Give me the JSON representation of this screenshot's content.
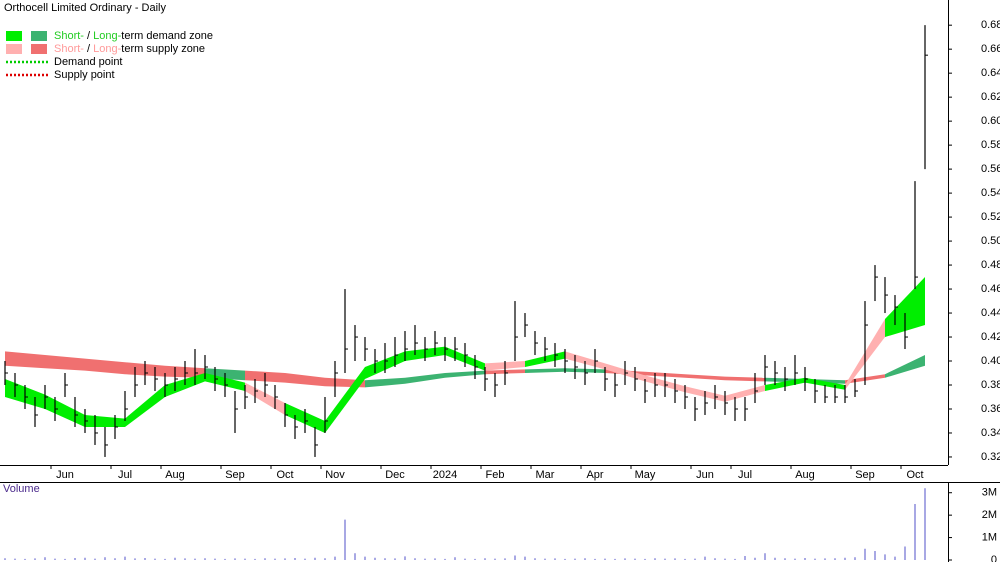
{
  "chart_data": {
    "type": "hlc",
    "title": "Orthocell Limited Ordinary - Daily",
    "legend": [
      {
        "parts": [
          "Short-",
          " / ",
          "Long-",
          "term demand zone"
        ],
        "colors": [
          "#00ee00",
          "#3cb371"
        ],
        "text_color": "#22cc22"
      },
      {
        "parts": [
          "Short-",
          " / ",
          "Long-",
          "term supply zone"
        ],
        "colors": [
          "#ffb0b0",
          "#f07070"
        ],
        "text_color": "#ff9a9a"
      },
      {
        "parts": [
          "Demand point"
        ],
        "colors": [
          "#00cc00"
        ],
        "dotted": true
      },
      {
        "parts": [
          "Supply point"
        ],
        "colors": [
          "#dd0000"
        ],
        "dotted": true
      }
    ],
    "categories": [
      null,
      null,
      null,
      null,
      null,
      null,
      "Jun",
      null,
      null,
      null,
      null,
      null,
      "Jul",
      null,
      null,
      null,
      null,
      "Aug",
      null,
      null,
      null,
      null,
      null,
      "Sep",
      null,
      null,
      null,
      null,
      "Oct",
      null,
      null,
      null,
      null,
      "Nov",
      null,
      null,
      null,
      null,
      null,
      "Dec",
      null,
      null,
      null,
      null,
      "2024",
      null,
      null,
      null,
      null,
      "Feb",
      null,
      null,
      null,
      null,
      "Mar",
      null,
      null,
      null,
      null,
      "Apr",
      null,
      null,
      null,
      null,
      "May",
      null,
      null,
      null,
      null,
      null,
      "Jun",
      null,
      null,
      null,
      "Jul",
      null,
      null,
      null,
      null,
      null,
      "Aug",
      null,
      null,
      null,
      null,
      null,
      "Sep",
      null,
      null,
      null,
      null,
      "Oct",
      null
    ],
    "high": [
      0.4,
      0.39,
      0.38,
      0.37,
      0.38,
      0.37,
      0.39,
      0.37,
      0.36,
      0.355,
      0.345,
      0.355,
      0.375,
      0.395,
      0.4,
      0.395,
      0.39,
      0.395,
      0.4,
      0.41,
      0.405,
      0.395,
      0.39,
      0.375,
      0.38,
      0.385,
      0.39,
      0.38,
      0.365,
      0.355,
      0.36,
      0.345,
      0.37,
      0.4,
      0.46,
      0.43,
      0.42,
      0.41,
      0.415,
      0.42,
      0.425,
      0.43,
      0.42,
      0.425,
      0.42,
      0.42,
      0.415,
      0.405,
      0.395,
      0.39,
      0.4,
      0.45,
      0.44,
      0.425,
      0.42,
      0.415,
      0.41,
      0.405,
      0.4,
      0.41,
      0.395,
      0.39,
      0.4,
      0.395,
      0.385,
      0.39,
      0.39,
      0.385,
      0.38,
      0.37,
      0.375,
      0.38,
      0.375,
      0.37,
      0.37,
      0.39,
      0.405,
      0.4,
      0.395,
      0.405,
      0.395,
      0.385,
      0.38,
      0.38,
      0.38,
      0.385,
      0.45,
      0.48,
      0.47,
      0.455,
      0.44,
      0.55,
      0.68
    ],
    "low": [
      0.38,
      0.37,
      0.36,
      0.345,
      0.36,
      0.35,
      0.37,
      0.345,
      0.34,
      0.33,
      0.32,
      0.335,
      0.35,
      0.37,
      0.38,
      0.375,
      0.37,
      0.375,
      0.38,
      0.38,
      0.385,
      0.375,
      0.37,
      0.34,
      0.36,
      0.365,
      0.37,
      0.36,
      0.345,
      0.335,
      0.34,
      0.32,
      0.34,
      0.37,
      0.39,
      0.4,
      0.4,
      0.39,
      0.39,
      0.395,
      0.4,
      0.405,
      0.4,
      0.405,
      0.4,
      0.4,
      0.395,
      0.385,
      0.375,
      0.37,
      0.38,
      0.4,
      0.42,
      0.405,
      0.4,
      0.395,
      0.39,
      0.385,
      0.38,
      0.39,
      0.375,
      0.37,
      0.38,
      0.375,
      0.365,
      0.37,
      0.37,
      0.365,
      0.36,
      0.35,
      0.355,
      0.36,
      0.355,
      0.35,
      0.35,
      0.365,
      0.38,
      0.38,
      0.375,
      0.38,
      0.375,
      0.365,
      0.365,
      0.365,
      0.365,
      0.37,
      0.38,
      0.45,
      0.44,
      0.43,
      0.41,
      0.46,
      0.56
    ],
    "close": [
      0.39,
      0.38,
      0.37,
      0.355,
      0.37,
      0.36,
      0.38,
      0.355,
      0.35,
      0.34,
      0.33,
      0.345,
      0.36,
      0.38,
      0.39,
      0.385,
      0.38,
      0.385,
      0.39,
      0.39,
      0.395,
      0.385,
      0.38,
      0.36,
      0.37,
      0.375,
      0.38,
      0.37,
      0.355,
      0.345,
      0.35,
      0.33,
      0.35,
      0.39,
      0.41,
      0.42,
      0.41,
      0.4,
      0.4,
      0.405,
      0.41,
      0.415,
      0.41,
      0.415,
      0.41,
      0.41,
      0.405,
      0.395,
      0.385,
      0.38,
      0.39,
      0.42,
      0.43,
      0.415,
      0.41,
      0.405,
      0.4,
      0.395,
      0.39,
      0.4,
      0.385,
      0.38,
      0.39,
      0.385,
      0.375,
      0.38,
      0.38,
      0.375,
      0.37,
      0.36,
      0.365,
      0.37,
      0.365,
      0.36,
      0.36,
      0.375,
      0.395,
      0.39,
      0.385,
      0.39,
      0.385,
      0.375,
      0.37,
      0.37,
      0.37,
      0.375,
      0.43,
      0.47,
      0.455,
      0.445,
      0.42,
      0.47,
      0.655
    ],
    "bar_color": "#000000",
    "long_term_zone": {
      "index": [
        0,
        4,
        8,
        12,
        16,
        20,
        24,
        28,
        32,
        36,
        40,
        44,
        48,
        52,
        56,
        60,
        64,
        68,
        72,
        76,
        80,
        84,
        88,
        92
      ],
      "lower": [
        0.396,
        0.394,
        0.392,
        0.389,
        0.387,
        0.386,
        0.384,
        0.382,
        0.379,
        0.378,
        0.381,
        0.386,
        0.389,
        0.39,
        0.391,
        0.39,
        0.388,
        0.386,
        0.384,
        0.383,
        0.382,
        0.381,
        0.386,
        0.396
      ],
      "upper": [
        0.408,
        0.405,
        0.402,
        0.399,
        0.396,
        0.394,
        0.392,
        0.39,
        0.386,
        0.384,
        0.386,
        0.39,
        0.392,
        0.393,
        0.394,
        0.393,
        0.391,
        0.389,
        0.387,
        0.386,
        0.385,
        0.384,
        0.389,
        0.405
      ]
    },
    "short_term_zone": {
      "index": [
        0,
        4,
        8,
        12,
        16,
        20,
        24,
        28,
        32,
        36,
        40,
        44,
        48,
        52,
        56,
        60,
        64,
        68,
        72,
        76,
        80,
        84,
        88,
        92
      ],
      "lower": [
        0.37,
        0.36,
        0.345,
        0.345,
        0.37,
        0.383,
        0.375,
        0.355,
        0.34,
        0.385,
        0.4,
        0.405,
        0.392,
        0.395,
        0.402,
        0.393,
        0.383,
        0.374,
        0.366,
        0.375,
        0.382,
        0.376,
        0.42,
        0.43
      ],
      "upper": [
        0.385,
        0.372,
        0.355,
        0.352,
        0.38,
        0.39,
        0.382,
        0.365,
        0.35,
        0.395,
        0.408,
        0.412,
        0.398,
        0.4,
        0.408,
        0.398,
        0.388,
        0.379,
        0.371,
        0.38,
        0.386,
        0.38,
        0.435,
        0.47
      ]
    },
    "ylim": [
      0.3133,
      0.701
    ],
    "yticks": [
      0.32,
      0.34,
      0.36,
      0.38,
      {
        "value": 0.4,
        "label": "0.40"
      },
      0.42,
      0.44,
      0.46,
      0.48,
      {
        "value": 0.5,
        "label": "0.50"
      },
      0.52,
      0.54,
      0.56,
      0.58,
      {
        "value": 0.6,
        "label": "0.60"
      },
      0.62,
      0.64,
      0.66,
      0.68
    ],
    "volume": {
      "label": "Volume",
      "color": "#5050c8",
      "values": [
        80000,
        60000,
        50000,
        70000,
        120000,
        60000,
        50000,
        90000,
        100000,
        60000,
        120000,
        80000,
        150000,
        70000,
        90000,
        60000,
        50000,
        100000,
        70000,
        60000,
        80000,
        60000,
        50000,
        70000,
        60000,
        50000,
        80000,
        60000,
        70000,
        90000,
        60000,
        100000,
        80000,
        150000,
        1800000,
        300000,
        150000,
        100000,
        80000,
        70000,
        160000,
        80000,
        60000,
        70000,
        50000,
        120000,
        60000,
        50000,
        80000,
        60000,
        70000,
        200000,
        150000,
        80000,
        60000,
        70000,
        50000,
        60000,
        80000,
        50000,
        60000,
        50000,
        70000,
        60000,
        50000,
        80000,
        60000,
        70000,
        50000,
        60000,
        150000,
        80000,
        60000,
        50000,
        180000,
        100000,
        300000,
        100000,
        80000,
        60000,
        90000,
        60000,
        70000,
        80000,
        100000,
        120000,
        500000,
        400000,
        250000,
        150000,
        600000,
        2500000,
        3200000
      ],
      "ylim": [
        0,
        3300000
      ],
      "yticks": [
        0,
        {
          "value": 1000000,
          "label": "1M"
        },
        {
          "value": 2000000,
          "label": "2M"
        },
        {
          "value": 3000000,
          "label": "3M"
        }
      ]
    }
  }
}
